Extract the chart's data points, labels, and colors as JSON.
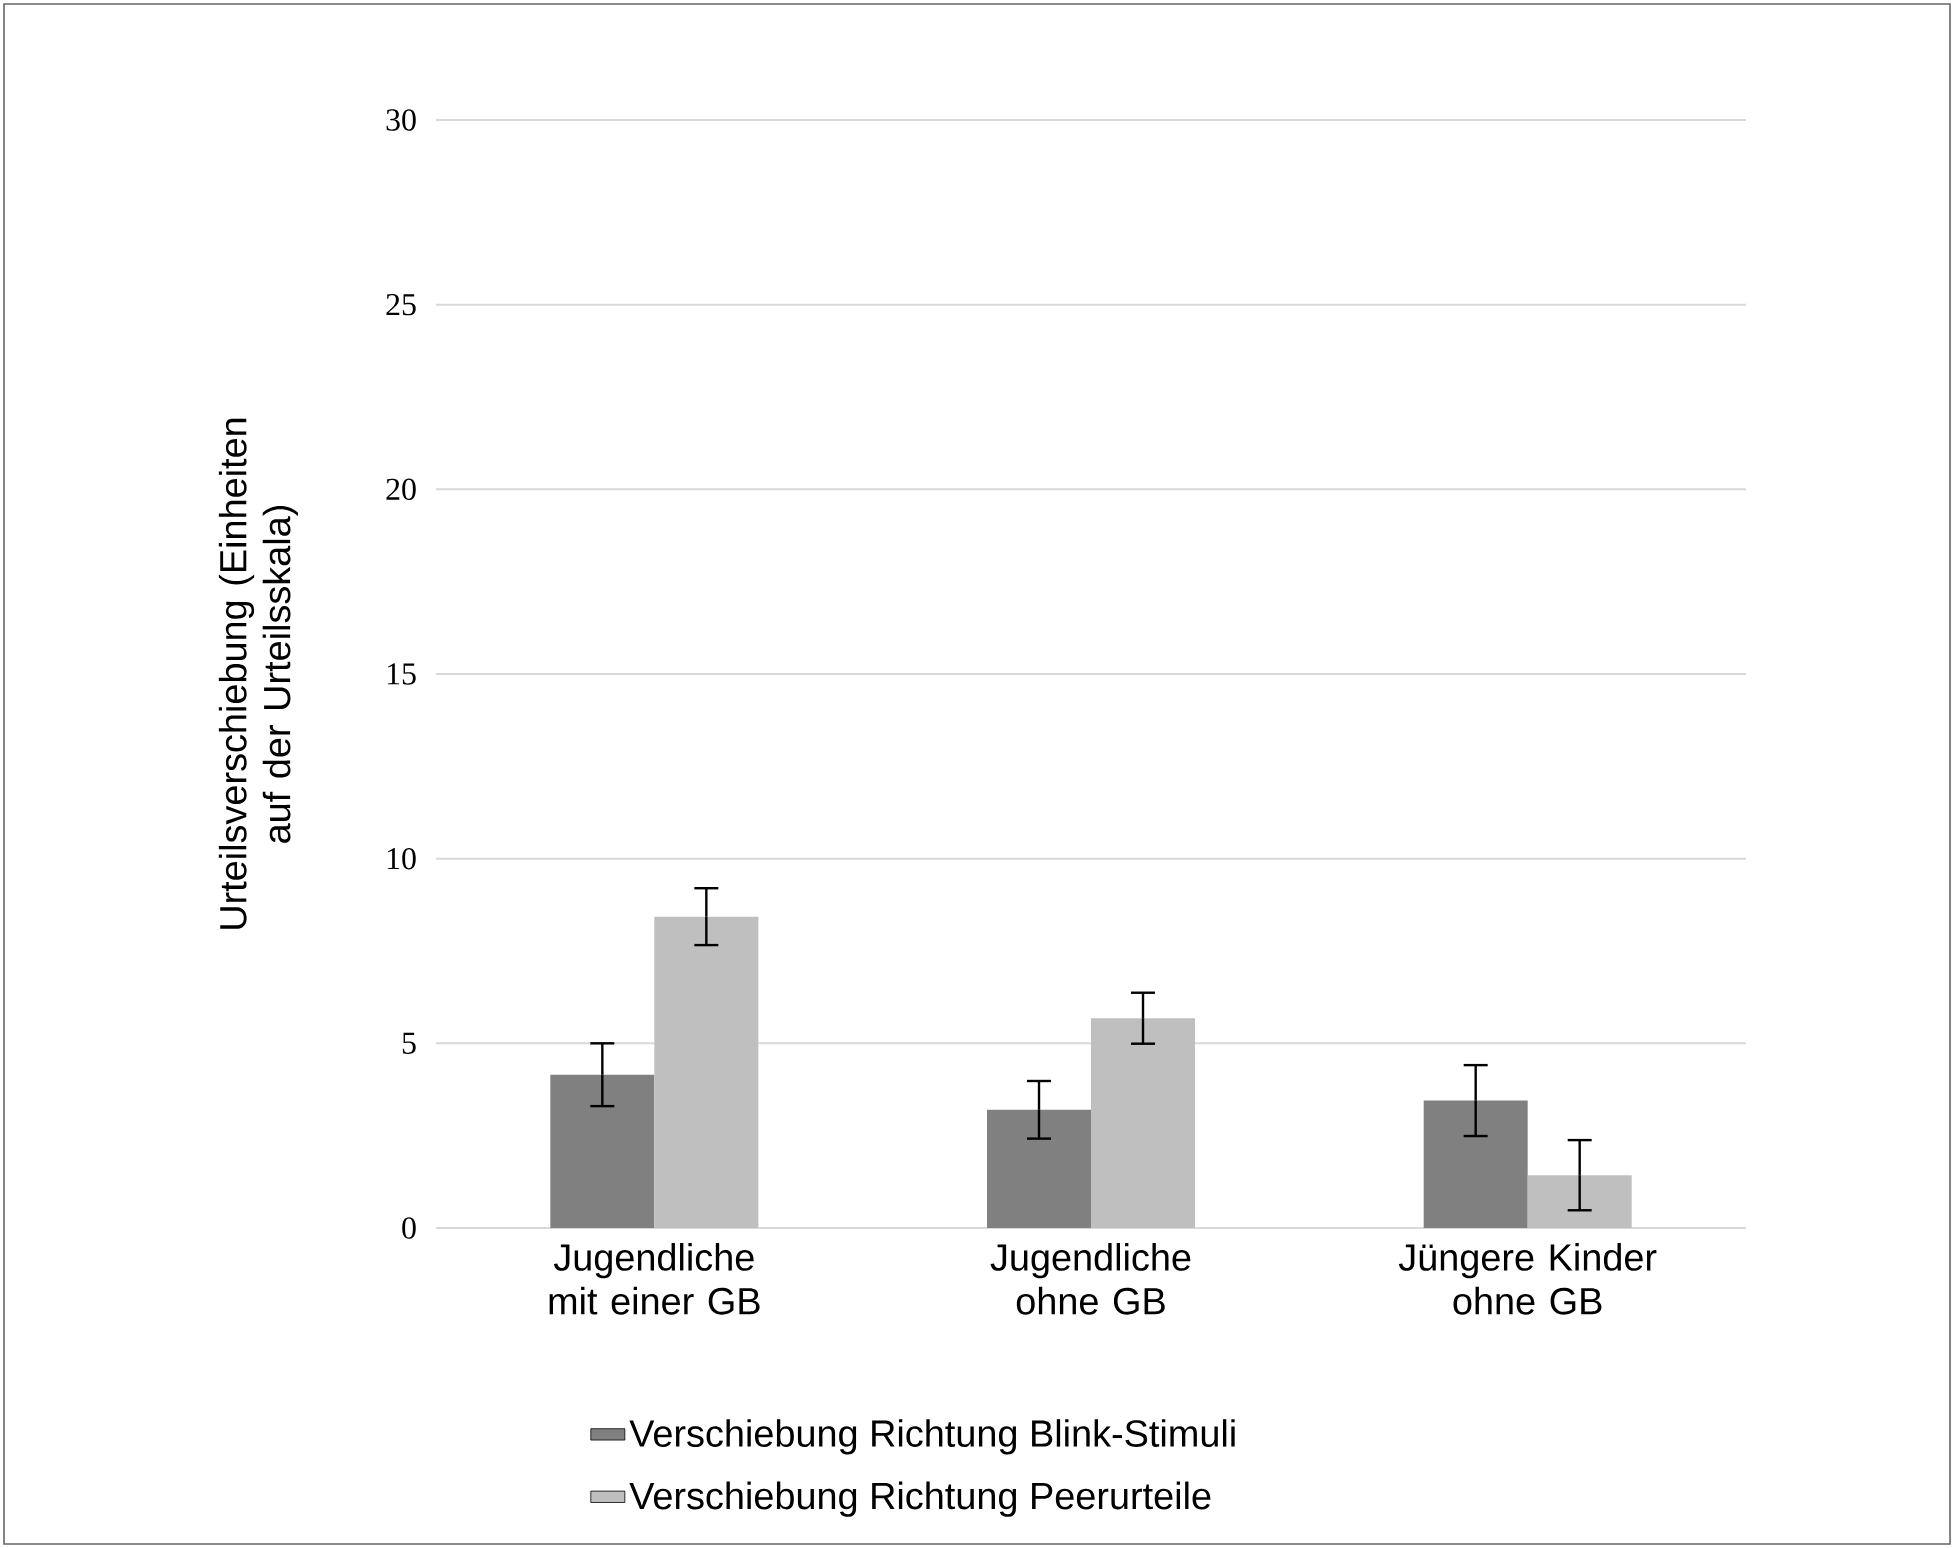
{
  "chart_data": {
    "type": "bar",
    "ylabel": "Urteilsverschiebung (Einheiten auf der Urteilsskala)",
    "categories": [
      "Jugendliche mit einer GB",
      "Jugendliche ohne GB",
      "Jüngere Kinder ohne GB"
    ],
    "series": [
      {
        "name": "Verschiebung Richtung Blink-Stimuli",
        "color": "#808080",
        "values": [
          4.15,
          3.2,
          3.45
        ],
        "errors": [
          0.85,
          0.78,
          0.96
        ]
      },
      {
        "name": "Verschiebung Richtung Peerurteile",
        "color": "#bfbfbf",
        "values": [
          8.43,
          5.68,
          1.43
        ],
        "errors": [
          0.77,
          0.69,
          0.95
        ]
      }
    ],
    "ylim": [
      0,
      30
    ],
    "yticks": [
      0,
      5,
      10,
      15,
      20,
      25,
      30
    ],
    "grid": "y",
    "legend": "bottom"
  }
}
